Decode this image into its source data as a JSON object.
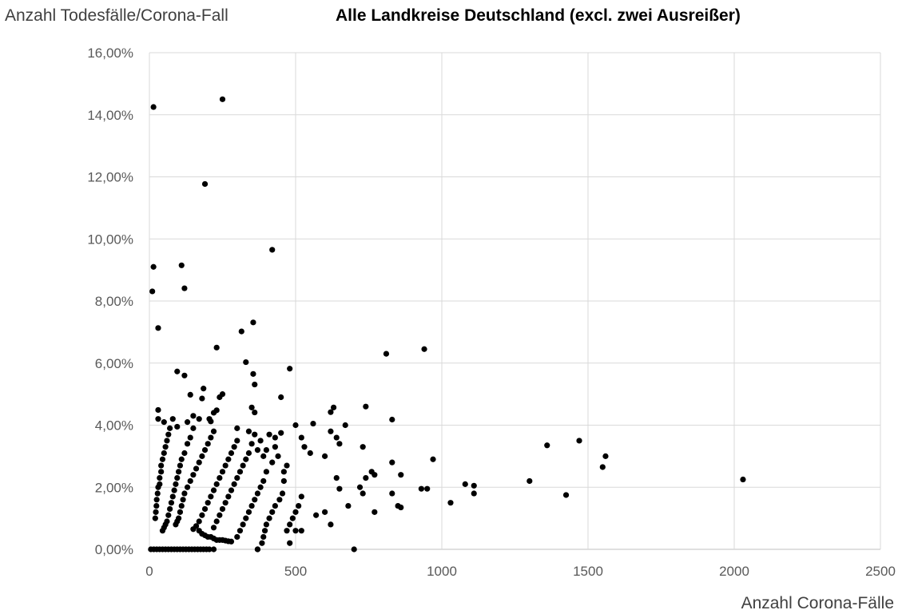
{
  "chart_data": {
    "type": "scatter",
    "title": "Alle Landkreise Deutschland (excl. zwei Ausreißer)",
    "xlabel": "Anzahl Corona-Fälle",
    "ylabel": "Anzahl Todesfälle/Corona-Fall",
    "xlim": [
      0,
      2500
    ],
    "ylim": [
      0,
      0.16
    ],
    "x_ticks": [
      "0",
      "500",
      "1000",
      "1500",
      "2000",
      "2500"
    ],
    "y_ticks": [
      "0,00%",
      "2,00%",
      "4,00%",
      "6,00%",
      "8,00%",
      "10,00%",
      "12,00%",
      "14,00%",
      "16,00%"
    ],
    "grid": true,
    "legend": "none",
    "marker_color": "#000000",
    "points": [
      [
        14,
        0.1425
      ],
      [
        250,
        0.145
      ],
      [
        190,
        0.1177
      ],
      [
        420,
        0.0965
      ],
      [
        14,
        0.091
      ],
      [
        110,
        0.0915
      ],
      [
        120,
        0.0841
      ],
      [
        10,
        0.0831
      ],
      [
        30,
        0.0713
      ],
      [
        355,
        0.0731
      ],
      [
        315,
        0.0702
      ],
      [
        230,
        0.065
      ],
      [
        810,
        0.063
      ],
      [
        940,
        0.0645
      ],
      [
        330,
        0.0603
      ],
      [
        95,
        0.0573
      ],
      [
        120,
        0.056
      ],
      [
        480,
        0.0582
      ],
      [
        355,
        0.0565
      ],
      [
        360,
        0.0531
      ],
      [
        185,
        0.0518
      ],
      [
        250,
        0.05
      ],
      [
        240,
        0.049
      ],
      [
        450,
        0.049
      ],
      [
        140,
        0.0498
      ],
      [
        180,
        0.0486
      ],
      [
        350,
        0.0457
      ],
      [
        360,
        0.0441
      ],
      [
        30,
        0.0449
      ],
      [
        630,
        0.0457
      ],
      [
        740,
        0.046
      ],
      [
        620,
        0.0442
      ],
      [
        830,
        0.0418
      ],
      [
        230,
        0.0448
      ],
      [
        220,
        0.044
      ],
      [
        205,
        0.042
      ],
      [
        150,
        0.043
      ],
      [
        170,
        0.042
      ],
      [
        30,
        0.042
      ],
      [
        50,
        0.041
      ],
      [
        80,
        0.042
      ],
      [
        95,
        0.0395
      ],
      [
        130,
        0.041
      ],
      [
        210,
        0.0412
      ],
      [
        300,
        0.039
      ],
      [
        340,
        0.038
      ],
      [
        360,
        0.037
      ],
      [
        410,
        0.037
      ],
      [
        430,
        0.036
      ],
      [
        450,
        0.0375
      ],
      [
        500,
        0.04
      ],
      [
        560,
        0.0405
      ],
      [
        670,
        0.04
      ],
      [
        620,
        0.038
      ],
      [
        640,
        0.036
      ],
      [
        650,
        0.034
      ],
      [
        520,
        0.036
      ],
      [
        530,
        0.033
      ],
      [
        550,
        0.031
      ],
      [
        600,
        0.03
      ],
      [
        730,
        0.033
      ],
      [
        760,
        0.025
      ],
      [
        770,
        0.024
      ],
      [
        740,
        0.023
      ],
      [
        830,
        0.028
      ],
      [
        860,
        0.024
      ],
      [
        970,
        0.029
      ],
      [
        1360,
        0.0335
      ],
      [
        1470,
        0.035
      ],
      [
        1560,
        0.03
      ],
      [
        1550,
        0.0265
      ],
      [
        1300,
        0.022
      ],
      [
        1080,
        0.021
      ],
      [
        1110,
        0.0205
      ],
      [
        1110,
        0.018
      ],
      [
        1030,
        0.015
      ],
      [
        930,
        0.0195
      ],
      [
        950,
        0.0195
      ],
      [
        850,
        0.014
      ],
      [
        860,
        0.0135
      ],
      [
        830,
        0.018
      ],
      [
        720,
        0.02
      ],
      [
        730,
        0.018
      ],
      [
        680,
        0.014
      ],
      [
        650,
        0.0195
      ],
      [
        640,
        0.023
      ],
      [
        600,
        0.012
      ],
      [
        620,
        0.008
      ],
      [
        570,
        0.011
      ],
      [
        700,
        0.0
      ],
      [
        2030,
        0.0225
      ],
      [
        1425,
        0.0175
      ],
      [
        770,
        0.012
      ],
      [
        520,
        0.017
      ],
      [
        510,
        0.014
      ],
      [
        500,
        0.012
      ],
      [
        490,
        0.01
      ],
      [
        480,
        0.008
      ],
      [
        470,
        0.006
      ],
      [
        480,
        0.002
      ],
      [
        500,
        0.006
      ],
      [
        520,
        0.006
      ],
      [
        460,
        0.022
      ],
      [
        455,
        0.018
      ],
      [
        445,
        0.016
      ],
      [
        430,
        0.014
      ],
      [
        420,
        0.012
      ],
      [
        410,
        0.01
      ],
      [
        400,
        0.008
      ],
      [
        395,
        0.006
      ],
      [
        390,
        0.004
      ],
      [
        385,
        0.002
      ],
      [
        370,
        0.0
      ],
      [
        470,
        0.027
      ],
      [
        460,
        0.025
      ],
      [
        440,
        0.03
      ],
      [
        430,
        0.033
      ],
      [
        420,
        0.028
      ],
      [
        400,
        0.025
      ],
      [
        390,
        0.022
      ],
      [
        380,
        0.02
      ],
      [
        370,
        0.018
      ],
      [
        360,
        0.016
      ],
      [
        350,
        0.014
      ],
      [
        340,
        0.012
      ],
      [
        330,
        0.01
      ],
      [
        320,
        0.008
      ],
      [
        310,
        0.006
      ],
      [
        300,
        0.004
      ],
      [
        400,
        0.032
      ],
      [
        390,
        0.03
      ],
      [
        380,
        0.035
      ],
      [
        370,
        0.032
      ],
      [
        350,
        0.034
      ],
      [
        340,
        0.031
      ],
      [
        330,
        0.029
      ],
      [
        320,
        0.027
      ],
      [
        310,
        0.025
      ],
      [
        300,
        0.023
      ],
      [
        290,
        0.021
      ],
      [
        280,
        0.019
      ],
      [
        270,
        0.017
      ],
      [
        260,
        0.015
      ],
      [
        250,
        0.013
      ],
      [
        240,
        0.011
      ],
      [
        230,
        0.009
      ],
      [
        220,
        0.007
      ],
      [
        300,
        0.035
      ],
      [
        290,
        0.033
      ],
      [
        280,
        0.031
      ],
      [
        270,
        0.029
      ],
      [
        260,
        0.027
      ],
      [
        250,
        0.025
      ],
      [
        240,
        0.023
      ],
      [
        230,
        0.021
      ],
      [
        220,
        0.019
      ],
      [
        210,
        0.017
      ],
      [
        200,
        0.015
      ],
      [
        190,
        0.013
      ],
      [
        180,
        0.011
      ],
      [
        170,
        0.009
      ],
      [
        160,
        0.0075
      ],
      [
        150,
        0.0065
      ],
      [
        220,
        0.038
      ],
      [
        210,
        0.036
      ],
      [
        200,
        0.034
      ],
      [
        190,
        0.032
      ],
      [
        180,
        0.03
      ],
      [
        170,
        0.028
      ],
      [
        160,
        0.026
      ],
      [
        150,
        0.024
      ],
      [
        140,
        0.022
      ],
      [
        130,
        0.02
      ],
      [
        120,
        0.018
      ],
      [
        115,
        0.016
      ],
      [
        110,
        0.014
      ],
      [
        105,
        0.012
      ],
      [
        100,
        0.01
      ],
      [
        95,
        0.009
      ],
      [
        90,
        0.008
      ],
      [
        150,
        0.039
      ],
      [
        140,
        0.036
      ],
      [
        130,
        0.034
      ],
      [
        120,
        0.031
      ],
      [
        110,
        0.029
      ],
      [
        105,
        0.027
      ],
      [
        100,
        0.025
      ],
      [
        95,
        0.023
      ],
      [
        90,
        0.021
      ],
      [
        85,
        0.019
      ],
      [
        80,
        0.017
      ],
      [
        75,
        0.015
      ],
      [
        70,
        0.013
      ],
      [
        65,
        0.011
      ],
      [
        60,
        0.009
      ],
      [
        55,
        0.008
      ],
      [
        50,
        0.007
      ],
      [
        45,
        0.006
      ],
      [
        70,
        0.039
      ],
      [
        65,
        0.037
      ],
      [
        60,
        0.035
      ],
      [
        55,
        0.033
      ],
      [
        50,
        0.031
      ],
      [
        45,
        0.029
      ],
      [
        40,
        0.027
      ],
      [
        40,
        0.025
      ],
      [
        35,
        0.023
      ],
      [
        35,
        0.021
      ],
      [
        30,
        0.02
      ],
      [
        28,
        0.018
      ],
      [
        25,
        0.016
      ],
      [
        24,
        0.014
      ],
      [
        22,
        0.012
      ],
      [
        20,
        0.01
      ],
      [
        170,
        0.006
      ],
      [
        180,
        0.005
      ],
      [
        190,
        0.0045
      ],
      [
        200,
        0.004
      ],
      [
        210,
        0.004
      ],
      [
        220,
        0.0035
      ],
      [
        230,
        0.003
      ],
      [
        240,
        0.003
      ],
      [
        250,
        0.003
      ],
      [
        260,
        0.0028
      ],
      [
        270,
        0.0026
      ],
      [
        280,
        0.0025
      ],
      [
        5,
        0.0
      ],
      [
        15,
        0.0
      ],
      [
        25,
        0.0
      ],
      [
        35,
        0.0
      ],
      [
        45,
        0.0
      ],
      [
        55,
        0.0
      ],
      [
        65,
        0.0
      ],
      [
        75,
        0.0
      ],
      [
        85,
        0.0
      ],
      [
        95,
        0.0
      ],
      [
        105,
        0.0
      ],
      [
        115,
        0.0
      ],
      [
        125,
        0.0
      ],
      [
        135,
        0.0
      ],
      [
        145,
        0.0
      ],
      [
        155,
        0.0
      ],
      [
        165,
        0.0
      ],
      [
        175,
        0.0
      ],
      [
        185,
        0.0
      ],
      [
        195,
        0.0
      ],
      [
        205,
        0.0
      ],
      [
        220,
        0.0
      ],
      [
        370,
        0.0
      ]
    ]
  }
}
